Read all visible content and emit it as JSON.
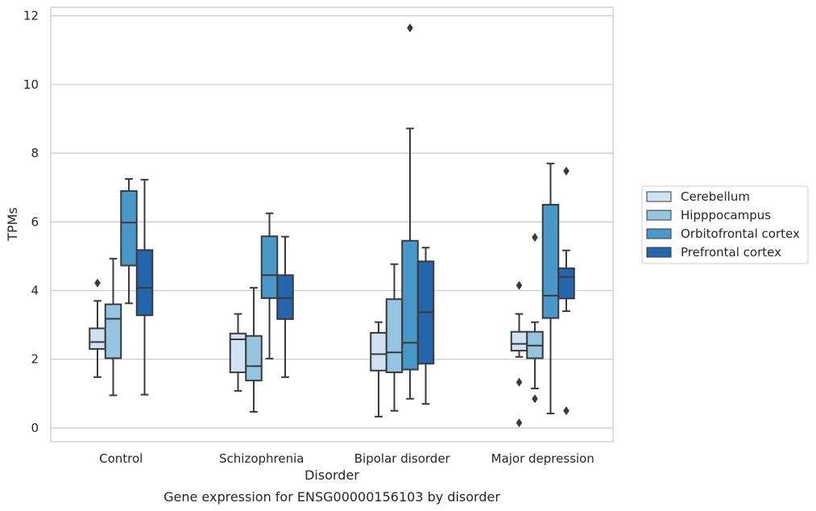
{
  "chart_data": {
    "type": "box",
    "title": "",
    "caption": "Gene expression for ENSG00000156103 by disorder",
    "xlabel": "Disorder",
    "ylabel": "TPMs",
    "ylim": [
      -0.4,
      12.25
    ],
    "yticks": [
      0,
      2,
      4,
      6,
      8,
      10,
      12
    ],
    "grid": "horizontal",
    "legend_position": "right",
    "categories": [
      "Control",
      "Schizophrenia",
      "Bipolar disorder",
      "Major depression"
    ],
    "series": [
      {
        "name": "Cerebellum",
        "color": "#d0e1f2",
        "boxes": [
          {
            "q1": 2.3,
            "median": 2.5,
            "q3": 2.9,
            "whisker_low": 1.48,
            "whisker_high": 3.7,
            "outliers": [
              4.22
            ]
          },
          {
            "q1": 1.62,
            "median": 2.58,
            "q3": 2.75,
            "whisker_low": 1.08,
            "whisker_high": 3.32,
            "outliers": []
          },
          {
            "q1": 1.67,
            "median": 2.15,
            "q3": 2.77,
            "whisker_low": 0.33,
            "whisker_high": 3.08,
            "outliers": []
          },
          {
            "q1": 2.25,
            "median": 2.45,
            "q3": 2.8,
            "whisker_low": 2.07,
            "whisker_high": 3.32,
            "outliers": [
              4.15,
              1.33,
              0.15
            ]
          }
        ]
      },
      {
        "name": "Hipppocampus",
        "color": "#94c4df",
        "boxes": [
          {
            "q1": 2.03,
            "median": 3.18,
            "q3": 3.6,
            "whisker_low": 0.95,
            "whisker_high": 4.93,
            "outliers": []
          },
          {
            "q1": 1.38,
            "median": 1.8,
            "q3": 2.68,
            "whisker_low": 0.47,
            "whisker_high": 4.08,
            "outliers": []
          },
          {
            "q1": 1.62,
            "median": 2.2,
            "q3": 3.75,
            "whisker_low": 0.5,
            "whisker_high": 4.77,
            "outliers": []
          },
          {
            "q1": 2.03,
            "median": 2.4,
            "q3": 2.8,
            "whisker_low": 1.15,
            "whisker_high": 3.08,
            "outliers": [
              5.55,
              0.85
            ]
          }
        ]
      },
      {
        "name": "Orbitofrontal cortex",
        "color": "#4a98c9",
        "boxes": [
          {
            "q1": 4.73,
            "median": 5.98,
            "q3": 6.9,
            "whisker_low": 3.63,
            "whisker_high": 7.25,
            "outliers": []
          },
          {
            "q1": 3.78,
            "median": 4.45,
            "q3": 5.58,
            "whisker_low": 2.02,
            "whisker_high": 6.25,
            "outliers": []
          },
          {
            "q1": 1.7,
            "median": 2.48,
            "q3": 5.45,
            "whisker_low": 0.85,
            "whisker_high": 8.72,
            "outliers": [
              11.65
            ]
          },
          {
            "q1": 3.2,
            "median": 3.85,
            "q3": 6.5,
            "whisker_low": 0.42,
            "whisker_high": 7.7,
            "outliers": []
          }
        ]
      },
      {
        "name": "Prefrontal cortex",
        "color": "#2465ab",
        "boxes": [
          {
            "q1": 3.28,
            "median": 4.08,
            "q3": 5.18,
            "whisker_low": 0.97,
            "whisker_high": 7.23,
            "outliers": []
          },
          {
            "q1": 3.17,
            "median": 3.78,
            "q3": 4.45,
            "whisker_low": 1.48,
            "whisker_high": 5.57,
            "outliers": []
          },
          {
            "q1": 1.87,
            "median": 3.37,
            "q3": 4.85,
            "whisker_low": 0.7,
            "whisker_high": 5.25,
            "outliers": []
          },
          {
            "q1": 3.77,
            "median": 4.4,
            "q3": 4.65,
            "whisker_low": 3.4,
            "whisker_high": 5.17,
            "outliers": [
              7.48,
              0.5
            ]
          }
        ]
      }
    ]
  }
}
